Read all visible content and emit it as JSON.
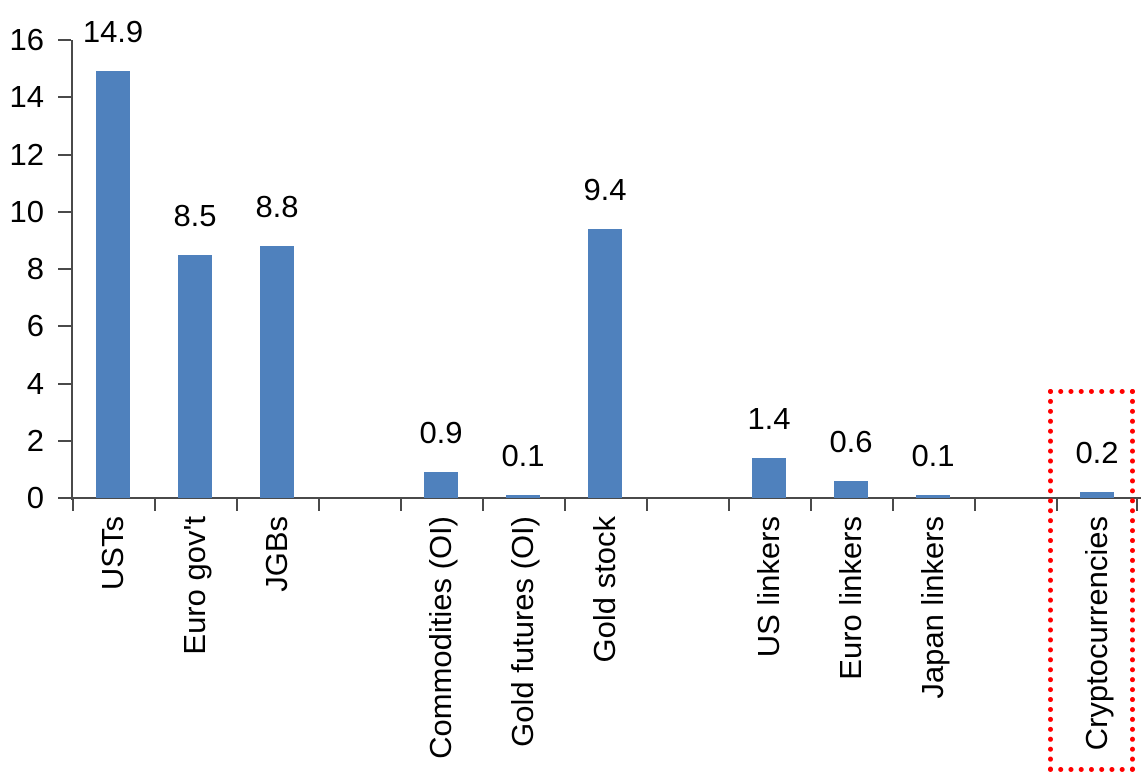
{
  "chart_data": {
    "type": "bar",
    "title": "",
    "xlabel": "",
    "ylabel": "",
    "categories": [
      "USTs",
      "Euro gov't",
      "JGBs",
      "Commodities (OI)",
      "Gold futures (OI)",
      "Gold stock",
      "US linkers",
      "Euro linkers",
      "Japan linkers",
      "Cryptocurrencies"
    ],
    "values": [
      14.9,
      8.5,
      8.8,
      0.9,
      0.1,
      9.4,
      1.4,
      0.6,
      0.1,
      0.2
    ],
    "data_labels": [
      "14.9",
      "8.5",
      "8.8",
      "0.9",
      "0.1",
      "9.4",
      "1.4",
      "0.6",
      "0.1",
      "0.2"
    ],
    "slot_index": [
      0,
      1,
      2,
      4,
      5,
      6,
      8,
      9,
      10,
      12
    ],
    "total_slots": 13,
    "group_gaps_after": [
      "JGBs",
      "Gold stock",
      "Japan linkers"
    ],
    "y_axis": {
      "min": 0,
      "max": 16,
      "step": 2,
      "tick_labels": [
        "0",
        "2",
        "4",
        "6",
        "8",
        "10",
        "12",
        "14",
        "16"
      ]
    },
    "x_tick_marks_between_categories": true,
    "category_label_rotation_deg": 90,
    "grid": false,
    "legend": false,
    "bar_color": "#4F81BD",
    "axis_color": "#4a4a4a",
    "text_color": "#000000",
    "highlight": {
      "category": "Cryptocurrencies",
      "shape": "dotted-rectangle",
      "color": "#FF0000"
    }
  }
}
